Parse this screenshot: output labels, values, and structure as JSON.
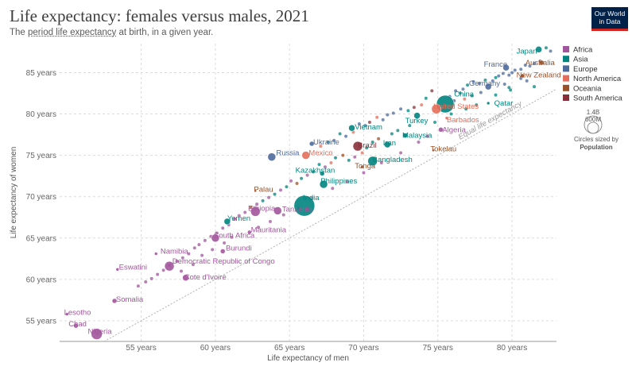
{
  "header": {
    "title": "Life expectancy: females versus males, 2021",
    "subtitle_pre": "The ",
    "subtitle_link": "period life expectancy",
    "subtitle_post": " at birth, in a given year.",
    "logo_line1": "Our World",
    "logo_line2": "in Data"
  },
  "colors": {
    "Africa": "#a2559c",
    "Asia": "#00847e",
    "Europe": "#4c6a9c",
    "North America": "#e56e5a",
    "Oceania": "#9a5129",
    "South America": "#883039"
  },
  "chart_data": {
    "type": "scatter",
    "xlabel": "Life expectancy of men",
    "ylabel": "Life expectancy of women",
    "xlim": [
      49.5,
      83
    ],
    "ylim": [
      52.5,
      88.5
    ],
    "x_ticks": [
      "55 years",
      "60 years",
      "65 years",
      "70 years",
      "75 years",
      "80 years"
    ],
    "y_ticks": [
      "55 years",
      "60 years",
      "65 years",
      "70 years",
      "75 years",
      "80 years",
      "85 years"
    ],
    "x_tick_values": [
      55,
      60,
      65,
      70,
      75,
      80
    ],
    "y_tick_values": [
      55,
      60,
      65,
      70,
      75,
      80,
      85
    ],
    "grid": true,
    "equal_line_label": "Equal life expectancy",
    "legend": [
      "Africa",
      "Asia",
      "Europe",
      "North America",
      "Oceania",
      "South America"
    ],
    "legend_position": "right",
    "size_legend": {
      "large": "1.4B",
      "small": "600M",
      "caption": "Circles sized by",
      "caption_bold": "Population"
    },
    "points": [
      {
        "label": "Japan",
        "x": 81.8,
        "y": 87.8,
        "r": 4,
        "region": "Asia"
      },
      {
        "label": "Australia",
        "x": 82.0,
        "y": 86.2,
        "r": 3,
        "region": "Oceania"
      },
      {
        "label": "France",
        "x": 79.6,
        "y": 85.6,
        "r": 4,
        "region": "Europe"
      },
      {
        "label": "New Zealand",
        "x": 80.7,
        "y": 84.6,
        "r": 2.5,
        "region": "Oceania"
      },
      {
        "label": "Germany",
        "x": 78.4,
        "y": 83.3,
        "r": 4,
        "region": "Europe"
      },
      {
        "label": "China",
        "x": 75.5,
        "y": 81.2,
        "r": 11,
        "region": "Asia"
      },
      {
        "label": "Qatar",
        "x": 78.4,
        "y": 81.3,
        "r": 2,
        "region": "Asia"
      },
      {
        "label": "United States",
        "x": 74.9,
        "y": 80.6,
        "r": 6,
        "region": "North America"
      },
      {
        "label": "Barbados",
        "x": 75.6,
        "y": 79.5,
        "r": 2,
        "region": "North America"
      },
      {
        "label": "Turkey",
        "x": 73.6,
        "y": 79.8,
        "r": 4,
        "region": "Asia"
      },
      {
        "label": "Vietnam",
        "x": 69.2,
        "y": 78.3,
        "r": 4,
        "region": "Asia"
      },
      {
        "label": "Malaysia",
        "x": 72.8,
        "y": 77.4,
        "r": 3,
        "region": "Asia"
      },
      {
        "label": "Algeria",
        "x": 75.2,
        "y": 78.1,
        "r": 3,
        "region": "Africa"
      },
      {
        "label": "Iran",
        "x": 71.6,
        "y": 76.3,
        "r": 4,
        "region": "Asia"
      },
      {
        "label": "Ukraine",
        "x": 66.5,
        "y": 76.4,
        "r": 3,
        "region": "Europe"
      },
      {
        "label": "Brazil",
        "x": 69.6,
        "y": 76.1,
        "r": 6,
        "region": "South America"
      },
      {
        "label": "Tokelau",
        "x": 74.7,
        "y": 75.6,
        "r": 1.5,
        "region": "Oceania"
      },
      {
        "label": "Mexico",
        "x": 66.1,
        "y": 75.0,
        "r": 5,
        "region": "North America"
      },
      {
        "label": "Russia",
        "x": 63.8,
        "y": 74.8,
        "r": 5,
        "region": "Europe"
      },
      {
        "label": "Tonga",
        "x": 69.9,
        "y": 73.6,
        "r": 2,
        "region": "Oceania"
      },
      {
        "label": "Bangladesh",
        "x": 70.6,
        "y": 74.3,
        "r": 6,
        "region": "Asia"
      },
      {
        "label": "Kazakhstan",
        "x": 67.2,
        "y": 72.8,
        "r": 3,
        "region": "Asia"
      },
      {
        "label": "Philippines",
        "x": 67.3,
        "y": 71.5,
        "r": 5,
        "region": "Asia"
      },
      {
        "label": "Palau",
        "x": 62.7,
        "y": 70.7,
        "r": 1.5,
        "region": "Oceania"
      },
      {
        "label": "India",
        "x": 66.0,
        "y": 68.9,
        "r": 13,
        "region": "Asia"
      },
      {
        "label": "Tanzania",
        "x": 64.2,
        "y": 68.3,
        "r": 5,
        "region": "Africa"
      },
      {
        "label": "Ethiopia",
        "x": 62.7,
        "y": 68.2,
        "r": 6,
        "region": "Africa"
      },
      {
        "label": "Yemen",
        "x": 60.8,
        "y": 67.0,
        "r": 4,
        "region": "Asia"
      },
      {
        "label": "Mauritania",
        "x": 62.3,
        "y": 65.7,
        "r": 2.5,
        "region": "Africa"
      },
      {
        "label": "South Africa",
        "x": 60.0,
        "y": 65.0,
        "r": 5,
        "region": "Africa"
      },
      {
        "label": "Burundi",
        "x": 60.5,
        "y": 63.4,
        "r": 3,
        "region": "Africa"
      },
      {
        "label": "Namibia",
        "x": 56.0,
        "y": 63.1,
        "r": 2,
        "region": "Africa"
      },
      {
        "label": "Democratic Republic of Congo",
        "x": 56.9,
        "y": 61.6,
        "r": 6,
        "region": "Africa"
      },
      {
        "label": "Eswatini",
        "x": 53.4,
        "y": 61.2,
        "r": 2,
        "region": "Africa"
      },
      {
        "label": "Cote d'Ivoire",
        "x": 58.0,
        "y": 60.2,
        "r": 4,
        "region": "Africa"
      },
      {
        "label": "Somalia",
        "x": 53.2,
        "y": 57.4,
        "r": 3,
        "region": "Africa"
      },
      {
        "label": "Lesotho",
        "x": 50.0,
        "y": 55.8,
        "r": 2,
        "region": "Africa"
      },
      {
        "label": "Chad",
        "x": 50.6,
        "y": 54.4,
        "r": 3,
        "region": "Africa"
      },
      {
        "label": "Nigeria",
        "x": 52.0,
        "y": 53.4,
        "r": 7,
        "region": "Africa"
      }
    ],
    "visible_labels": [
      {
        "text": "Japan",
        "x": 80.3,
        "y": 87.6,
        "region": "Asia",
        "size": 10
      },
      {
        "text": "Australia",
        "x": 80.9,
        "y": 86.2,
        "region": "Oceania",
        "size": 10
      },
      {
        "text": "France",
        "x": 78.1,
        "y": 86.0,
        "region": "Europe",
        "size": 10
      },
      {
        "text": "New Zealand",
        "x": 80.3,
        "y": 84.7,
        "region": "Oceania",
        "size": 10
      },
      {
        "text": "Germany",
        "x": 77.1,
        "y": 83.7,
        "region": "Europe",
        "size": 10
      },
      {
        "text": "China",
        "x": 76.1,
        "y": 82.4,
        "region": "Asia",
        "size": 12
      },
      {
        "text": "Qatar",
        "x": 78.8,
        "y": 81.3,
        "region": "Asia",
        "size": 10
      },
      {
        "text": "United States",
        "x": 74.7,
        "y": 80.9,
        "region": "North America",
        "size": 10
      },
      {
        "text": "Barbados",
        "x": 75.6,
        "y": 79.3,
        "region": "North America",
        "size": 10
      },
      {
        "text": "Turkey",
        "x": 72.8,
        "y": 79.2,
        "region": "Asia",
        "size": 10
      },
      {
        "text": "Vietnam",
        "x": 69.4,
        "y": 78.4,
        "region": "Asia",
        "size": 10
      },
      {
        "text": "Malaysia",
        "x": 72.6,
        "y": 77.4,
        "region": "Asia",
        "size": 10
      },
      {
        "text": "Algeria",
        "x": 75.3,
        "y": 78.1,
        "region": "Africa",
        "size": 10
      },
      {
        "text": "Iran",
        "x": 71.3,
        "y": 76.5,
        "region": "Asia",
        "size": 10
      },
      {
        "text": "Ukraine",
        "x": 66.6,
        "y": 76.6,
        "region": "Europe",
        "size": 10
      },
      {
        "text": "Brazil",
        "x": 69.6,
        "y": 76.2,
        "region": "South America",
        "size": 10
      },
      {
        "text": "Tokelau",
        "x": 74.5,
        "y": 75.8,
        "region": "Oceania",
        "size": 10
      },
      {
        "text": "Mexico",
        "x": 66.3,
        "y": 75.3,
        "region": "North America",
        "size": 10
      },
      {
        "text": "Russia",
        "x": 64.1,
        "y": 75.3,
        "region": "Europe",
        "size": 10
      },
      {
        "text": "Tonga",
        "x": 69.4,
        "y": 73.7,
        "region": "Oceania",
        "size": 10
      },
      {
        "text": "Bangladesh",
        "x": 70.6,
        "y": 74.5,
        "region": "Asia",
        "size": 10
      },
      {
        "text": "Kazakhstan",
        "x": 65.4,
        "y": 73.2,
        "region": "Asia",
        "size": 10
      },
      {
        "text": "Philippines",
        "x": 67.1,
        "y": 71.9,
        "region": "Asia",
        "size": 10
      },
      {
        "text": "Palau",
        "x": 62.6,
        "y": 70.9,
        "region": "Oceania",
        "size": 10
      },
      {
        "text": "India",
        "x": 65.9,
        "y": 69.9,
        "region": "Asia",
        "size": 12
      },
      {
        "text": "Tanzania",
        "x": 64.5,
        "y": 68.5,
        "region": "Africa",
        "size": 10
      },
      {
        "text": "Ethiopia",
        "x": 62.2,
        "y": 68.6,
        "region": "Africa",
        "size": 10
      },
      {
        "text": "Yemen",
        "x": 60.8,
        "y": 67.4,
        "region": "Asia",
        "size": 10
      },
      {
        "text": "Mauritania",
        "x": 62.4,
        "y": 66.0,
        "region": "Africa",
        "size": 10
      },
      {
        "text": "South Africa",
        "x": 59.9,
        "y": 65.3,
        "region": "Africa",
        "size": 10
      },
      {
        "text": "Burundi",
        "x": 60.7,
        "y": 63.8,
        "region": "Africa",
        "size": 10
      },
      {
        "text": "Namibia",
        "x": 56.3,
        "y": 63.4,
        "region": "Africa",
        "size": 10
      },
      {
        "text": "Democratic Republic of Congo",
        "x": 57.1,
        "y": 62.2,
        "region": "Africa",
        "size": 10
      },
      {
        "text": "Eswatini",
        "x": 53.5,
        "y": 61.5,
        "region": "Africa",
        "size": 10
      },
      {
        "text": "Cote d'Ivoire",
        "x": 57.9,
        "y": 60.3,
        "region": "Africa",
        "size": 10
      },
      {
        "text": "Somalia",
        "x": 53.3,
        "y": 57.6,
        "region": "Africa",
        "size": 10
      },
      {
        "text": "Lesotho",
        "x": 49.8,
        "y": 56.0,
        "region": "Africa",
        "size": 10
      },
      {
        "text": "Chad",
        "x": 50.1,
        "y": 54.6,
        "region": "Africa",
        "size": 10
      },
      {
        "text": "Nigeria",
        "x": 51.4,
        "y": 53.7,
        "region": "Africa",
        "size": 10
      }
    ],
    "background_points": [
      [
        82.3,
        88.0,
        "Asia"
      ],
      [
        82.6,
        87.6,
        "Europe"
      ],
      [
        81.9,
        86.4,
        "Europe"
      ],
      [
        81.5,
        86.1,
        "Europe"
      ],
      [
        81.2,
        85.8,
        "Europe"
      ],
      [
        80.9,
        85.9,
        "Europe"
      ],
      [
        80.6,
        85.4,
        "Europe"
      ],
      [
        80.2,
        85.3,
        "Europe"
      ],
      [
        80.0,
        85.0,
        "Europe"
      ],
      [
        79.8,
        84.7,
        "Europe"
      ],
      [
        79.4,
        84.9,
        "Europe"
      ],
      [
        79.1,
        84.6,
        "Europe"
      ],
      [
        78.9,
        84.4,
        "Asia"
      ],
      [
        78.7,
        84.0,
        "Europe"
      ],
      [
        78.2,
        84.1,
        "Asia"
      ],
      [
        77.8,
        83.7,
        "Europe"
      ],
      [
        77.4,
        83.9,
        "Europe"
      ],
      [
        77.0,
        83.5,
        "Asia"
      ],
      [
        76.7,
        83.0,
        "Europe"
      ],
      [
        76.5,
        82.5,
        "Asia"
      ],
      [
        76.2,
        82.8,
        "Europe"
      ],
      [
        75.8,
        82.1,
        "Europe"
      ],
      [
        79.5,
        83.6,
        "Europe"
      ],
      [
        79.8,
        83.2,
        "Asia"
      ],
      [
        80.6,
        84.3,
        "Europe"
      ],
      [
        81.0,
        84.0,
        "Europe"
      ],
      [
        77.9,
        82.6,
        "Europe"
      ],
      [
        77.3,
        82.2,
        "Asia"
      ],
      [
        76.8,
        81.8,
        "North America"
      ],
      [
        76.1,
        81.6,
        "Europe"
      ],
      [
        74.6,
        82.8,
        "South America"
      ],
      [
        74.2,
        81.9,
        "Asia"
      ],
      [
        73.9,
        81.1,
        "North America"
      ],
      [
        73.4,
        80.8,
        "South America"
      ],
      [
        73.0,
        80.4,
        "Asia"
      ],
      [
        72.5,
        80.6,
        "Europe"
      ],
      [
        72.0,
        80.1,
        "Europe"
      ],
      [
        71.6,
        79.9,
        "Europe"
      ],
      [
        71.3,
        79.3,
        "Europe"
      ],
      [
        70.9,
        79.6,
        "North America"
      ],
      [
        70.4,
        79.0,
        "South America"
      ],
      [
        70.1,
        78.6,
        "Europe"
      ],
      [
        69.7,
        78.8,
        "Europe"
      ],
      [
        69.3,
        77.8,
        "North America"
      ],
      [
        68.8,
        77.3,
        "Europe"
      ],
      [
        68.4,
        77.6,
        "Asia"
      ],
      [
        68.0,
        76.8,
        "Europe"
      ],
      [
        67.6,
        76.6,
        "Asia"
      ],
      [
        67.1,
        76.1,
        "North America"
      ],
      [
        72.3,
        78.0,
        "Asia"
      ],
      [
        71.9,
        77.6,
        "Asia"
      ],
      [
        71.0,
        77.0,
        "Oceania"
      ],
      [
        70.6,
        76.6,
        "Asia"
      ],
      [
        70.2,
        75.9,
        "Asia"
      ],
      [
        69.9,
        75.3,
        "North America"
      ],
      [
        69.4,
        74.8,
        "Africa"
      ],
      [
        69.0,
        74.4,
        "Asia"
      ],
      [
        68.6,
        75.0,
        "Oceania"
      ],
      [
        68.1,
        74.7,
        "Asia"
      ],
      [
        67.8,
        74.1,
        "North America"
      ],
      [
        67.4,
        73.6,
        "Africa"
      ],
      [
        67.0,
        73.9,
        "Asia"
      ],
      [
        66.6,
        73.0,
        "Asia"
      ],
      [
        66.2,
        72.6,
        "Africa"
      ],
      [
        65.8,
        72.2,
        "Asia"
      ],
      [
        65.5,
        71.6,
        "Oceania"
      ],
      [
        65.1,
        71.9,
        "Africa"
      ],
      [
        64.8,
        71.2,
        "Asia"
      ],
      [
        64.4,
        70.8,
        "Africa"
      ],
      [
        64.0,
        70.3,
        "Asia"
      ],
      [
        63.6,
        69.9,
        "Africa"
      ],
      [
        63.2,
        69.5,
        "Asia"
      ],
      [
        62.8,
        69.1,
        "Africa"
      ],
      [
        62.4,
        68.7,
        "Oceania"
      ],
      [
        62.0,
        68.1,
        "Africa"
      ],
      [
        61.6,
        67.7,
        "Africa"
      ],
      [
        61.3,
        67.3,
        "Africa"
      ],
      [
        60.9,
        66.6,
        "Africa"
      ],
      [
        60.5,
        66.2,
        "Africa"
      ],
      [
        60.1,
        65.6,
        "Africa"
      ],
      [
        59.7,
        65.2,
        "Africa"
      ],
      [
        59.3,
        64.7,
        "Africa"
      ],
      [
        58.9,
        64.2,
        "Africa"
      ],
      [
        58.6,
        63.8,
        "Africa"
      ],
      [
        58.2,
        63.1,
        "Africa"
      ],
      [
        57.8,
        62.6,
        "Africa"
      ],
      [
        57.4,
        62.2,
        "Africa"
      ],
      [
        56.9,
        61.7,
        "Africa"
      ],
      [
        56.5,
        61.1,
        "Africa"
      ],
      [
        56.1,
        60.6,
        "Africa"
      ],
      [
        55.7,
        60.1,
        "Africa"
      ],
      [
        55.3,
        59.7,
        "Africa"
      ],
      [
        54.8,
        59.2,
        "Africa"
      ],
      [
        61.1,
        65.1,
        "Africa"
      ],
      [
        60.6,
        64.4,
        "Africa"
      ],
      [
        59.8,
        63.6,
        "Africa"
      ],
      [
        59.1,
        62.9,
        "Africa"
      ],
      [
        58.5,
        61.8,
        "Africa"
      ],
      [
        57.7,
        61.0,
        "Africa"
      ],
      [
        62.9,
        66.3,
        "Africa"
      ],
      [
        63.7,
        67.0,
        "Africa"
      ],
      [
        64.6,
        67.8,
        "Africa"
      ],
      [
        65.6,
        68.6,
        "Africa"
      ],
      [
        66.5,
        69.8,
        "Africa"
      ],
      [
        67.9,
        71.0,
        "Africa"
      ],
      [
        68.9,
        71.8,
        "Africa"
      ],
      [
        70.0,
        72.9,
        "Africa"
      ],
      [
        71.2,
        74.1,
        "Africa"
      ],
      [
        72.5,
        75.3,
        "Africa"
      ],
      [
        73.7,
        76.6,
        "Africa"
      ],
      [
        74.3,
        77.3,
        "Africa"
      ],
      [
        73.1,
        78.6,
        "Asia"
      ],
      [
        74.8,
        79.0,
        "Asia"
      ],
      [
        75.9,
        80.0,
        "Asia"
      ],
      [
        76.9,
        80.6,
        "Asia"
      ],
      [
        77.6,
        81.1,
        "Asia"
      ],
      [
        78.9,
        82.3,
        "Asia"
      ],
      [
        79.9,
        82.9,
        "Asia"
      ],
      [
        81.5,
        83.3,
        "Asia"
      ]
    ]
  }
}
